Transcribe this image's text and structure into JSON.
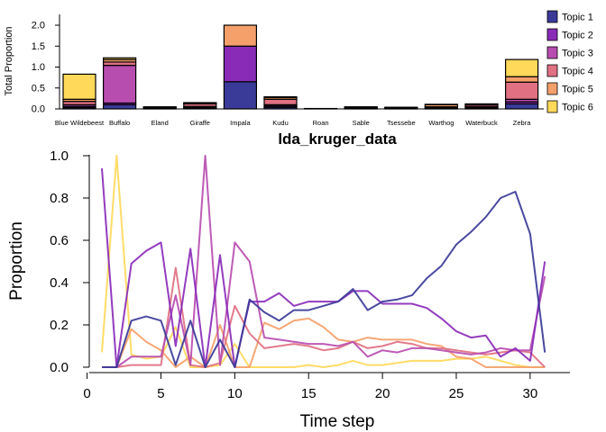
{
  "chart_data": [
    {
      "type": "bar",
      "stacked": true,
      "title": "lda_kruger_data",
      "ylabel": "Total Proportion",
      "xlabel": "",
      "ylim": [
        0,
        2.0
      ],
      "yticks": [
        "0.0",
        "0.5",
        "1.0",
        "1.5",
        "2.0"
      ],
      "legend_position": "right",
      "categories": [
        "Blue Wildebeest",
        "Buffalo",
        "Eland",
        "Giraffe",
        "Impala",
        "Kudu",
        "Roan",
        "Sable",
        "Tsessebe",
        "Warthog",
        "Waterbuck",
        "Zebra"
      ],
      "series": [
        {
          "name": "Topic 1",
          "color": "#3A3A98",
          "values": [
            0.03,
            0.1,
            0.0,
            0.02,
            0.65,
            0.04,
            0.0,
            0.01,
            0.0,
            0.01,
            0.01,
            0.12
          ]
        },
        {
          "name": "Topic 2",
          "color": "#8A2BB8",
          "values": [
            0.03,
            0.04,
            0.01,
            0.01,
            0.85,
            0.03,
            0.0,
            0.0,
            0.0,
            0.01,
            0.02,
            0.05
          ]
        },
        {
          "name": "Topic 3",
          "color": "#B84DB0",
          "values": [
            0.04,
            0.9,
            0.01,
            0.03,
            0.0,
            0.03,
            0.01,
            0.01,
            0.01,
            0.01,
            0.02,
            0.06
          ]
        },
        {
          "name": "Topic 4",
          "color": "#E07082",
          "values": [
            0.08,
            0.08,
            0.02,
            0.06,
            0.0,
            0.13,
            0.0,
            0.01,
            0.01,
            0.02,
            0.04,
            0.41
          ]
        },
        {
          "name": "Topic 5",
          "color": "#F5A06A",
          "values": [
            0.05,
            0.06,
            0.01,
            0.02,
            0.5,
            0.04,
            0.0,
            0.01,
            0.01,
            0.05,
            0.02,
            0.13
          ]
        },
        {
          "name": "Topic 6",
          "color": "#FFD95A",
          "values": [
            0.6,
            0.04,
            0.0,
            0.01,
            0.0,
            0.02,
            0.0,
            0.01,
            0.01,
            0.01,
            0.01,
            0.41
          ]
        }
      ]
    },
    {
      "type": "line",
      "title": "",
      "xlabel": "Time step",
      "ylabel": "Proportion",
      "xlim": [
        0,
        32
      ],
      "ylim": [
        0,
        1.0
      ],
      "xticks": [
        "0",
        "5",
        "10",
        "15",
        "20",
        "25",
        "30"
      ],
      "yticks": [
        "0.0",
        "0.2",
        "0.4",
        "0.6",
        "0.8",
        "1.0"
      ],
      "x": [
        1,
        2,
        3,
        4,
        5,
        6,
        7,
        8,
        9,
        10,
        11,
        12,
        13,
        14,
        15,
        16,
        17,
        18,
        19,
        20,
        21,
        22,
        23,
        24,
        25,
        26,
        27,
        28,
        29,
        30,
        31
      ],
      "series": [
        {
          "name": "Topic 1",
          "color": "#3A3A98",
          "values": [
            0,
            0,
            0.22,
            0.24,
            0.22,
            0.01,
            0.22,
            0.0,
            0.13,
            0.0,
            0.32,
            0.26,
            0.22,
            0.27,
            0.27,
            0.29,
            0.31,
            0.37,
            0.27,
            0.31,
            0.32,
            0.34,
            0.42,
            0.48,
            0.58,
            0.64,
            0.71,
            0.8,
            0.83,
            0.63,
            0.07
          ]
        },
        {
          "name": "Topic 2",
          "color": "#8A2BB8",
          "values": [
            0.94,
            0,
            0.49,
            0.55,
            0.59,
            0.1,
            0.56,
            0.0,
            0.53,
            0.0,
            0.31,
            0.31,
            0.35,
            0.29,
            0.31,
            0.31,
            0.31,
            0.36,
            0.36,
            0.3,
            0.3,
            0.3,
            0.28,
            0.23,
            0.17,
            0.14,
            0.15,
            0.05,
            0.09,
            0.03,
            0.5
          ]
        },
        {
          "name": "Topic 3",
          "color": "#B84DB0",
          "values": [
            0,
            0,
            0.05,
            0.05,
            0.05,
            0.34,
            0.01,
            1.0,
            0.01,
            0.59,
            0.5,
            0.14,
            0.13,
            0.12,
            0.11,
            0.11,
            0.1,
            0.12,
            0.05,
            0.08,
            0.07,
            0.09,
            0.09,
            0.08,
            0.07,
            0.06,
            0.07,
            0.09,
            0.08,
            0.08,
            0.43
          ]
        },
        {
          "name": "Topic 4",
          "color": "#E07082",
          "values": [
            0,
            0,
            0.01,
            0.01,
            0.01,
            0.47,
            0.01,
            0.0,
            0.02,
            0.29,
            0.16,
            0.09,
            0.1,
            0.11,
            0.1,
            0.08,
            0.09,
            0.12,
            0.09,
            0.1,
            0.12,
            0.11,
            0.09,
            0.09,
            0.08,
            0.07,
            0.06,
            0.07,
            0.08,
            0.07,
            0.0
          ]
        },
        {
          "name": "Topic 5",
          "color": "#F5A06A",
          "values": [
            0,
            0,
            0.18,
            0.12,
            0.08,
            0.0,
            0.05,
            0.0,
            0.2,
            0.0,
            0.0,
            0.21,
            0.18,
            0.22,
            0.23,
            0.19,
            0.13,
            0.12,
            0.14,
            0.13,
            0.13,
            0.13,
            0.11,
            0.1,
            0.05,
            0.04,
            0.0,
            0.0,
            0.0,
            0.0,
            0.0
          ]
        },
        {
          "name": "Topic 6",
          "color": "#FFD95A",
          "values": [
            0.07,
            1.0,
            0.06,
            0.04,
            0.05,
            0.19,
            0.0,
            0.0,
            0.01,
            0.11,
            0.0,
            0.0,
            0.0,
            0.0,
            0.01,
            0.0,
            0.01,
            0.03,
            0.01,
            0.01,
            0.02,
            0.03,
            0.03,
            0.03,
            0.04,
            0.04,
            0.05,
            0.03,
            0.01,
            0.0,
            0.0
          ]
        }
      ]
    }
  ]
}
